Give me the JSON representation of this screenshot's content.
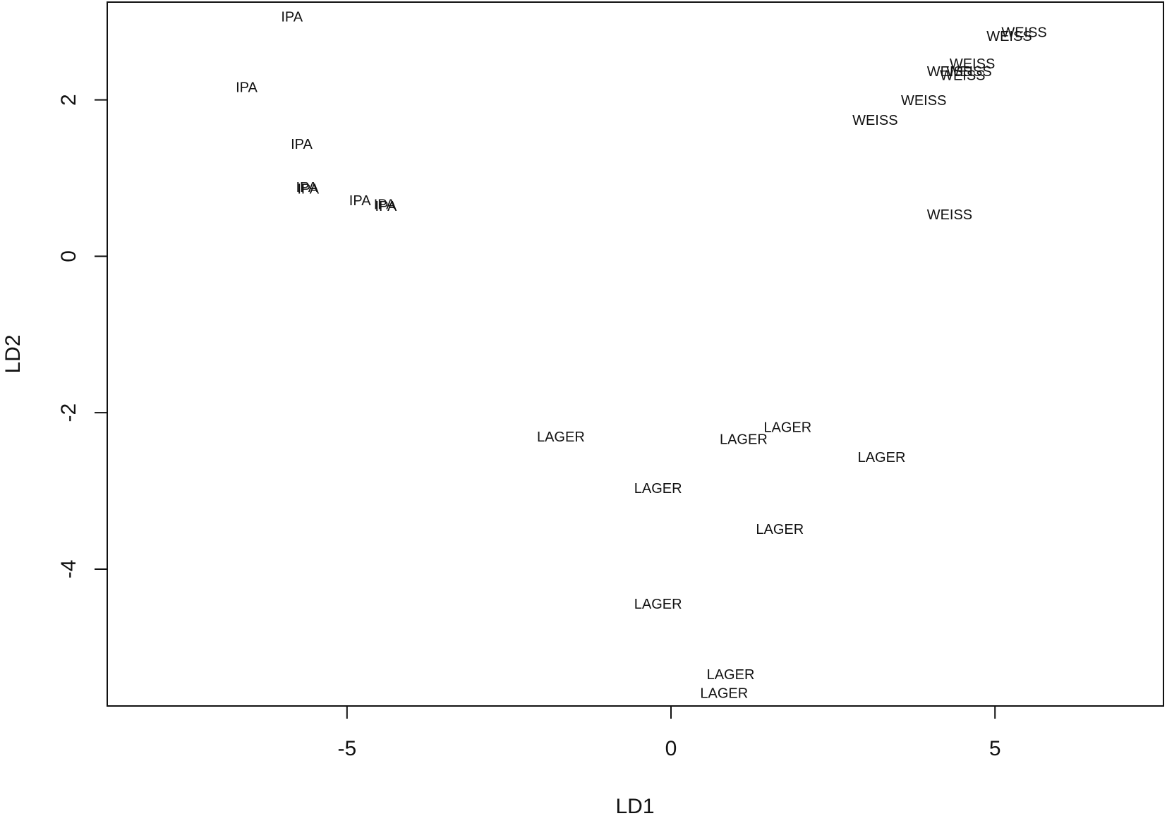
{
  "chart_data": {
    "type": "scatter",
    "title": "",
    "xlabel": "LD1",
    "ylabel": "LD2",
    "xlim": [
      -8.7,
      7.6
    ],
    "ylim": [
      -5.75,
      3.25
    ],
    "xticks": [
      -5,
      0,
      5
    ],
    "xtick_labels": [
      "-5",
      "0",
      "5"
    ],
    "yticks": [
      -4,
      -2,
      0,
      2
    ],
    "ytick_labels": [
      "-4",
      "-2",
      "0",
      "2"
    ],
    "grid": false,
    "legend": "none",
    "point_style": "text labels",
    "points": [
      {
        "x": -5.85,
        "y": 3.05,
        "label": "IPA"
      },
      {
        "x": -6.55,
        "y": 2.15,
        "label": "IPA"
      },
      {
        "x": -5.7,
        "y": 1.42,
        "label": "IPA"
      },
      {
        "x": -5.6,
        "y": 0.85,
        "label": "IPA"
      },
      {
        "x": -5.62,
        "y": 0.87,
        "label": "IPA"
      },
      {
        "x": -4.8,
        "y": 0.7,
        "label": "IPA"
      },
      {
        "x": -4.4,
        "y": 0.63,
        "label": "IPA"
      },
      {
        "x": -4.42,
        "y": 0.65,
        "label": "IPA"
      },
      {
        "x": 5.45,
        "y": 2.85,
        "label": "WEISS"
      },
      {
        "x": 5.22,
        "y": 2.8,
        "label": "WEISS"
      },
      {
        "x": 4.65,
        "y": 2.45,
        "label": "WEISS"
      },
      {
        "x": 4.3,
        "y": 2.35,
        "label": "WEISS"
      },
      {
        "x": 4.6,
        "y": 2.35,
        "label": "WEISS"
      },
      {
        "x": 4.5,
        "y": 2.3,
        "label": "WEISS"
      },
      {
        "x": 3.9,
        "y": 1.98,
        "label": "WEISS"
      },
      {
        "x": 3.15,
        "y": 1.73,
        "label": "WEISS"
      },
      {
        "x": 4.3,
        "y": 0.52,
        "label": "WEISS"
      },
      {
        "x": -1.7,
        "y": -2.32,
        "label": "LAGER"
      },
      {
        "x": 1.8,
        "y": -2.2,
        "label": "LAGER"
      },
      {
        "x": 1.12,
        "y": -2.35,
        "label": "LAGER"
      },
      {
        "x": 3.25,
        "y": -2.58,
        "label": "LAGER"
      },
      {
        "x": -0.2,
        "y": -2.98,
        "label": "LAGER"
      },
      {
        "x": 1.68,
        "y": -3.5,
        "label": "LAGER"
      },
      {
        "x": -0.2,
        "y": -4.46,
        "label": "LAGER"
      },
      {
        "x": 0.92,
        "y": -5.36,
        "label": "LAGER"
      },
      {
        "x": 0.82,
        "y": -5.6,
        "label": "LAGER"
      }
    ]
  }
}
